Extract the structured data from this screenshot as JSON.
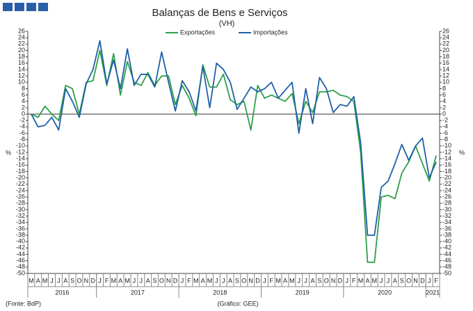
{
  "chart_data": {
    "type": "line",
    "title": "Balanças de Bens e Serviços",
    "subtitle": "(VH)",
    "ylabel": "%",
    "source": "(Fonte: BdP)",
    "credit": "(Gráfico: GEE)",
    "years": [
      {
        "year": "2016",
        "months": [
          "M",
          "A",
          "M",
          "J",
          "J",
          "A",
          "S",
          "O",
          "N",
          "D"
        ]
      },
      {
        "year": "2017",
        "months": [
          "J",
          "F",
          "M",
          "A",
          "M",
          "J",
          "J",
          "A",
          "S",
          "O",
          "N",
          "D"
        ]
      },
      {
        "year": "2018",
        "months": [
          "J",
          "F",
          "M",
          "A",
          "M",
          "J",
          "J",
          "A",
          "S",
          "O",
          "N",
          "D"
        ]
      },
      {
        "year": "2019",
        "months": [
          "J",
          "F",
          "M",
          "A",
          "M",
          "J",
          "J",
          "A",
          "S",
          "O",
          "N",
          "D"
        ]
      },
      {
        "year": "2020",
        "months": [
          "J",
          "F",
          "M",
          "A",
          "M",
          "J",
          "J",
          "A",
          "S",
          "O",
          "N",
          "D"
        ]
      },
      {
        "year": "2021",
        "months": [
          "J",
          "F"
        ]
      }
    ],
    "series": [
      {
        "name": "Exportações",
        "color": "#2ca048",
        "values": [
          0,
          -1,
          2.5,
          0,
          -2,
          9,
          8,
          0,
          10,
          10.5,
          20,
          9,
          19,
          6,
          16.5,
          10,
          9,
          13,
          9,
          12,
          12,
          3,
          9,
          5,
          -0.5,
          15.5,
          8.5,
          8.5,
          12.5,
          4.5,
          3,
          4,
          -5,
          9,
          5,
          6,
          5,
          4,
          6.5,
          -3,
          4,
          0.5,
          7,
          7,
          7.5,
          6,
          5.5,
          4,
          -12,
          -46.5,
          -46.5,
          -26,
          -25.5,
          -26.5,
          -18.5,
          -15,
          -10,
          -15.5,
          -21,
          -13
        ]
      },
      {
        "name": "Importações",
        "color": "#1f5fa8",
        "values": [
          0,
          -4,
          -3.5,
          -1,
          -5,
          8,
          4,
          -1,
          9.5,
          14,
          23,
          9.5,
          17,
          8,
          20.5,
          9,
          12.5,
          12.5,
          8.5,
          19.5,
          10,
          1,
          10.5,
          7,
          1,
          15,
          2,
          16,
          14,
          10,
          1.5,
          5,
          8.5,
          7,
          8,
          10,
          5,
          7.5,
          10,
          -6,
          8,
          -3,
          11.5,
          8,
          0.5,
          3,
          2.5,
          5.5,
          -9,
          -38,
          -38,
          -23,
          -21,
          -15.5,
          -9.5,
          -14.5,
          -10,
          -7.5,
          -20,
          -15
        ]
      }
    ],
    "ylim": [
      -50,
      26
    ],
    "yticks": [
      26,
      24,
      22,
      20,
      18,
      16,
      14,
      12,
      10,
      8,
      6,
      4,
      2,
      0,
      -2,
      -4,
      -6,
      -8,
      -10,
      -12,
      -14,
      -16,
      -18,
      -20,
      -22,
      -24,
      -26,
      -28,
      -30,
      -32,
      -34,
      -36,
      -38,
      -40,
      -42,
      -44,
      -46,
      -48,
      -50
    ]
  }
}
